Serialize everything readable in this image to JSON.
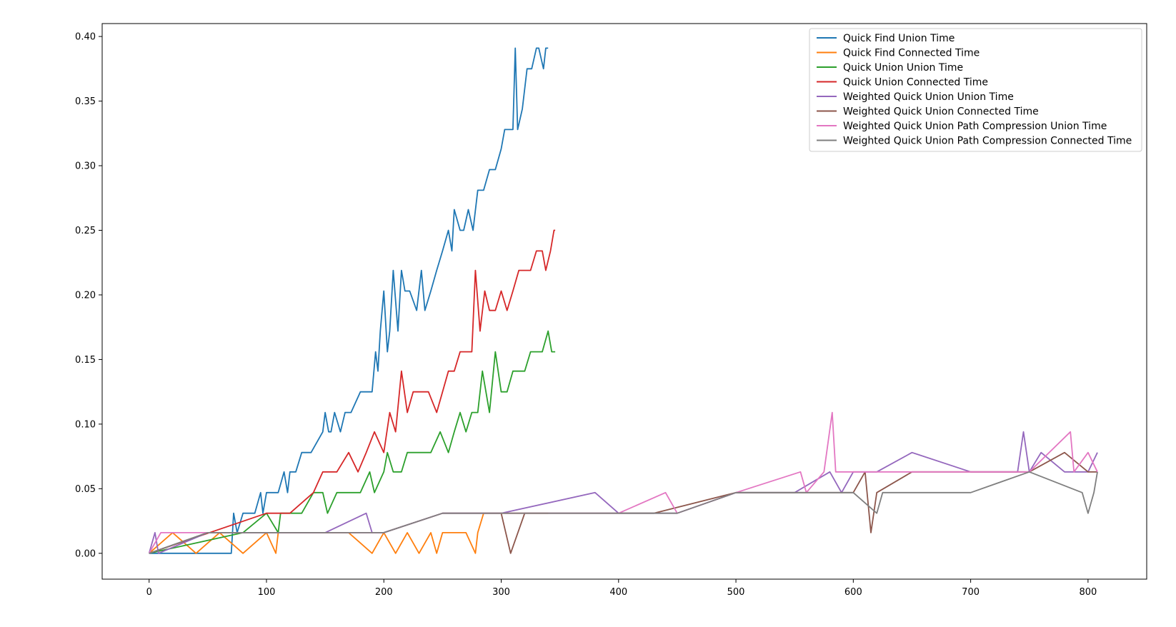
{
  "chart_data": {
    "type": "line",
    "title": "",
    "xlabel": "",
    "ylabel": "",
    "xlim": [
      -40,
      850
    ],
    "ylim": [
      -0.02,
      0.41
    ],
    "xticks": [
      0,
      100,
      200,
      300,
      400,
      500,
      600,
      700,
      800
    ],
    "yticks": [
      0.0,
      0.05,
      0.1,
      0.15,
      0.2,
      0.25,
      0.3,
      0.35,
      0.4
    ],
    "ytick_labels": [
      "0.00",
      "0.05",
      "0.10",
      "0.15",
      "0.20",
      "0.25",
      "0.30",
      "0.35",
      "0.40"
    ],
    "grid": false,
    "legend_position": "top-right",
    "series": [
      {
        "name": "Quick Find Union Time",
        "color": "#1f77b4",
        "x": [
          0,
          70,
          72,
          75,
          80,
          90,
          95,
          97,
          100,
          110,
          115,
          118,
          120,
          125,
          130,
          138,
          148,
          150,
          153,
          155,
          158,
          163,
          167,
          172,
          180,
          190,
          193,
          195,
          197,
          200,
          203,
          205,
          208,
          212,
          215,
          218,
          222,
          228,
          232,
          235,
          240,
          245,
          250,
          255,
          258,
          260,
          265,
          268,
          272,
          276,
          280,
          285,
          290,
          295,
          300,
          303,
          305,
          310,
          312,
          314,
          318,
          322,
          326,
          330,
          332,
          336,
          338,
          340
        ],
        "y": [
          0.0,
          0.0,
          0.031,
          0.016,
          0.031,
          0.031,
          0.047,
          0.031,
          0.047,
          0.047,
          0.063,
          0.047,
          0.063,
          0.063,
          0.078,
          0.078,
          0.094,
          0.109,
          0.094,
          0.094,
          0.109,
          0.094,
          0.109,
          0.109,
          0.125,
          0.125,
          0.156,
          0.141,
          0.172,
          0.203,
          0.156,
          0.172,
          0.219,
          0.172,
          0.219,
          0.203,
          0.203,
          0.188,
          0.219,
          0.188,
          0.203,
          0.219,
          0.234,
          0.25,
          0.234,
          0.266,
          0.25,
          0.25,
          0.266,
          0.25,
          0.281,
          0.281,
          0.297,
          0.297,
          0.313,
          0.328,
          0.328,
          0.328,
          0.391,
          0.328,
          0.344,
          0.375,
          0.375,
          0.391,
          0.391,
          0.375,
          0.391,
          0.391
        ]
      },
      {
        "name": "Quick Find Connected Time",
        "color": "#ff7f0e",
        "x": [
          0,
          20,
          40,
          60,
          80,
          100,
          108,
          110,
          130,
          150,
          170,
          190,
          200,
          210,
          220,
          230,
          240,
          245,
          250,
          260,
          270,
          278,
          280,
          285,
          300,
          320,
          340
        ],
        "y": [
          0.0,
          0.016,
          0.0,
          0.016,
          0.0,
          0.016,
          0.0,
          0.016,
          0.016,
          0.016,
          0.016,
          0.0,
          0.016,
          0.0,
          0.016,
          0.0,
          0.016,
          0.0,
          0.016,
          0.016,
          0.016,
          0.0,
          0.016,
          0.031,
          0.031,
          0.031,
          0.031
        ]
      },
      {
        "name": "Quick Union Union Time",
        "color": "#2ca02c",
        "x": [
          0,
          80,
          100,
          110,
          112,
          118,
          120,
          130,
          140,
          148,
          152,
          160,
          170,
          180,
          188,
          192,
          200,
          203,
          208,
          215,
          220,
          230,
          240,
          248,
          255,
          260,
          265,
          270,
          275,
          280,
          284,
          290,
          295,
          300,
          305,
          310,
          315,
          320,
          325,
          330,
          335,
          340,
          343,
          346
        ],
        "y": [
          0.0,
          0.016,
          0.031,
          0.016,
          0.031,
          0.031,
          0.031,
          0.031,
          0.047,
          0.047,
          0.031,
          0.047,
          0.047,
          0.047,
          0.063,
          0.047,
          0.063,
          0.078,
          0.063,
          0.063,
          0.078,
          0.078,
          0.078,
          0.094,
          0.078,
          0.094,
          0.109,
          0.094,
          0.109,
          0.109,
          0.141,
          0.109,
          0.156,
          0.125,
          0.125,
          0.141,
          0.141,
          0.141,
          0.156,
          0.156,
          0.156,
          0.172,
          0.156,
          0.156
        ]
      },
      {
        "name": "Quick Union Connected Time",
        "color": "#d62728",
        "x": [
          0,
          100,
          120,
          140,
          148,
          160,
          170,
          178,
          185,
          192,
          200,
          205,
          210,
          215,
          220,
          225,
          230,
          238,
          245,
          250,
          255,
          260,
          265,
          270,
          275,
          278,
          282,
          286,
          290,
          295,
          300,
          305,
          310,
          315,
          320,
          325,
          330,
          335,
          338,
          342,
          345,
          346
        ],
        "y": [
          0.0,
          0.031,
          0.031,
          0.047,
          0.063,
          0.063,
          0.078,
          0.063,
          0.078,
          0.094,
          0.078,
          0.109,
          0.094,
          0.141,
          0.109,
          0.125,
          0.125,
          0.125,
          0.109,
          0.125,
          0.141,
          0.141,
          0.156,
          0.156,
          0.156,
          0.219,
          0.172,
          0.203,
          0.188,
          0.188,
          0.203,
          0.188,
          0.203,
          0.219,
          0.219,
          0.219,
          0.234,
          0.234,
          0.219,
          0.234,
          0.25,
          0.25
        ]
      },
      {
        "name": "Weighted Quick Union Union Time",
        "color": "#9467bd",
        "x": [
          0,
          5,
          8,
          50,
          100,
          150,
          185,
          190,
          200,
          250,
          300,
          380,
          400,
          420,
          450,
          500,
          550,
          580,
          590,
          600,
          620,
          650,
          700,
          740,
          745,
          750,
          760,
          780,
          800,
          808
        ],
        "y": [
          0.0,
          0.016,
          0.0,
          0.016,
          0.016,
          0.016,
          0.031,
          0.016,
          0.016,
          0.031,
          0.031,
          0.047,
          0.031,
          0.031,
          0.031,
          0.047,
          0.047,
          0.063,
          0.047,
          0.063,
          0.063,
          0.078,
          0.063,
          0.063,
          0.094,
          0.063,
          0.078,
          0.063,
          0.063,
          0.078
        ]
      },
      {
        "name": "Weighted Quick Union Connected Time",
        "color": "#8c564b",
        "x": [
          0,
          50,
          100,
          150,
          200,
          250,
          300,
          308,
          320,
          380,
          430,
          500,
          560,
          600,
          610,
          615,
          620,
          650,
          700,
          750,
          780,
          800,
          808
        ],
        "y": [
          0.0,
          0.016,
          0.016,
          0.016,
          0.016,
          0.031,
          0.031,
          0.0,
          0.031,
          0.031,
          0.031,
          0.047,
          0.047,
          0.047,
          0.063,
          0.016,
          0.047,
          0.063,
          0.063,
          0.063,
          0.078,
          0.063,
          0.063
        ]
      },
      {
        "name": "Weighted Quick Union Path Compression Union Time",
        "color": "#e377c2",
        "x": [
          0,
          10,
          50,
          100,
          150,
          200,
          250,
          300,
          400,
          440,
          450,
          500,
          555,
          560,
          575,
          582,
          585,
          600,
          650,
          700,
          750,
          785,
          788,
          800,
          808
        ],
        "y": [
          0.0,
          0.016,
          0.016,
          0.016,
          0.016,
          0.016,
          0.031,
          0.031,
          0.031,
          0.047,
          0.031,
          0.047,
          0.063,
          0.047,
          0.063,
          0.109,
          0.063,
          0.063,
          0.063,
          0.063,
          0.063,
          0.094,
          0.063,
          0.078,
          0.063
        ]
      },
      {
        "name": "Weighted Quick Union Path Compression Connected Time",
        "color": "#7f7f7f",
        "x": [
          0,
          50,
          100,
          150,
          200,
          250,
          300,
          350,
          400,
          450,
          500,
          550,
          600,
          620,
          625,
          650,
          700,
          750,
          795,
          800,
          805,
          808
        ],
        "y": [
          0.0,
          0.016,
          0.016,
          0.016,
          0.016,
          0.031,
          0.031,
          0.031,
          0.031,
          0.031,
          0.047,
          0.047,
          0.047,
          0.031,
          0.047,
          0.047,
          0.047,
          0.063,
          0.047,
          0.031,
          0.047,
          0.063
        ]
      }
    ]
  }
}
